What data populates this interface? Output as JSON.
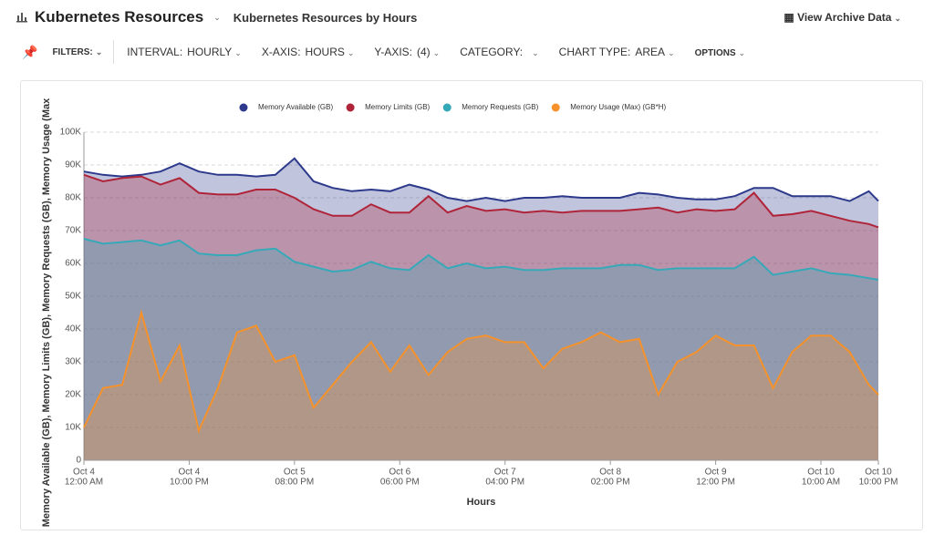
{
  "header": {
    "title": "Kubernetes Resources",
    "subtitle": "Kubernetes Resources by Hours",
    "archive": "View Archive Data"
  },
  "toolbar": {
    "filters": "FILTERS:",
    "items": [
      {
        "label": "INTERVAL:",
        "value": "HOURLY"
      },
      {
        "label": "X-AXIS:",
        "value": "HOURS"
      },
      {
        "label": "Y-AXIS:",
        "value": "(4)"
      },
      {
        "label": "CATEGORY:"
      },
      {
        "label": "CHART TYPE:",
        "value": "AREA"
      },
      {
        "label": "OPTIONS"
      }
    ]
  },
  "chart_data": {
    "type": "area",
    "x_label": "Hours",
    "y_label": "Memory Available (GB), Memory Limits (GB), Memory Requests (GB), Memory Usage (Max",
    "x": [
      0,
      4,
      8,
      12,
      16,
      20,
      24,
      28,
      32,
      36,
      40,
      44,
      48,
      52,
      56,
      60,
      64,
      68,
      72,
      76,
      80,
      84,
      88,
      92,
      96,
      100,
      104,
      108,
      112,
      116,
      120,
      124,
      128,
      132,
      136,
      140,
      144,
      148,
      152,
      156,
      160,
      164,
      166
    ],
    "series": [
      {
        "name": "Memory Available (GB)",
        "color": "#2d3a8c",
        "values": [
          88000,
          87000,
          86500,
          87000,
          88000,
          90500,
          88000,
          87000,
          87000,
          86500,
          87000,
          92000,
          85000,
          83000,
          82000,
          82500,
          82000,
          84000,
          82500,
          80000,
          79000,
          80000,
          79000,
          80000,
          80000,
          80500,
          80000,
          80000,
          80000,
          81500,
          81000,
          80000,
          79500,
          79500,
          80500,
          83000,
          83000,
          80500,
          80500,
          80500,
          79000,
          82000,
          79000
        ]
      },
      {
        "name": "Memory Limits (GB)",
        "color": "#b0243a",
        "values": [
          87000,
          85000,
          86000,
          86500,
          84000,
          86000,
          81500,
          81000,
          81000,
          82500,
          82500,
          80000,
          76500,
          74500,
          74500,
          78000,
          75500,
          75500,
          80500,
          75500,
          77500,
          76000,
          76500,
          75500,
          76000,
          75500,
          76000,
          76000,
          76000,
          76500,
          77000,
          75500,
          76500,
          76000,
          76500,
          81500,
          74500,
          75000,
          76000,
          74500,
          73000,
          72000,
          71000
        ]
      },
      {
        "name": "Memory Requests (GB)",
        "color": "#36a9b9",
        "values": [
          67500,
          66000,
          66500,
          67000,
          65500,
          67000,
          63000,
          62500,
          62500,
          64000,
          64500,
          60500,
          59000,
          57500,
          58000,
          60500,
          58500,
          58000,
          62500,
          58500,
          60000,
          58500,
          59000,
          58000,
          58000,
          58500,
          58500,
          58500,
          59500,
          59500,
          58000,
          58500,
          58500,
          58500,
          58500,
          62000,
          56500,
          57500,
          58500,
          57000,
          56500,
          55500,
          55000
        ]
      },
      {
        "name": "Memory Usage (Max) (GB*H)",
        "color": "#f5922b",
        "values": [
          10000,
          22000,
          23000,
          45000,
          24000,
          35000,
          9000,
          22000,
          39000,
          41000,
          30000,
          32000,
          16000,
          23000,
          30000,
          36000,
          27000,
          35000,
          26000,
          33000,
          37000,
          38000,
          36000,
          36000,
          28000,
          34000,
          36000,
          39000,
          36000,
          37000,
          20000,
          30000,
          33000,
          38000,
          35000,
          35000,
          22000,
          33000,
          38000,
          38000,
          33000,
          23000,
          20000
        ]
      }
    ],
    "xlim": [
      0,
      166
    ],
    "xticks": [
      {
        "value": 0,
        "label": [
          "Oct 4",
          "12:00 AM"
        ]
      },
      {
        "value": 22,
        "label": [
          "Oct 4",
          "10:00 PM"
        ]
      },
      {
        "value": 44,
        "label": [
          "Oct 5",
          "08:00 PM"
        ]
      },
      {
        "value": 66,
        "label": [
          "Oct 6",
          "06:00 PM"
        ]
      },
      {
        "value": 88,
        "label": [
          "Oct 7",
          "04:00 PM"
        ]
      },
      {
        "value": 110,
        "label": [
          "Oct 8",
          "02:00 PM"
        ]
      },
      {
        "value": 132,
        "label": [
          "Oct 9",
          "12:00 PM"
        ]
      },
      {
        "value": 154,
        "label": [
          "Oct 10",
          "10:00 AM"
        ]
      },
      {
        "value": 166,
        "label": [
          "Oct 10",
          "10:00 PM"
        ]
      }
    ],
    "ylim": [
      0,
      100000
    ],
    "yticks": [
      0,
      {
        "value": 10000,
        "label": "10K"
      },
      {
        "value": 20000,
        "label": "20K"
      },
      {
        "value": 30000,
        "label": "30K"
      },
      {
        "value": 40000,
        "label": "40K"
      },
      {
        "value": 50000,
        "label": "50K"
      },
      {
        "value": 60000,
        "label": "60K"
      },
      {
        "value": 70000,
        "label": "70K"
      },
      {
        "value": 80000,
        "label": "80K"
      },
      {
        "value": 90000,
        "label": "90K"
      },
      {
        "value": 100000,
        "label": "100K"
      }
    ],
    "grid": true
  }
}
